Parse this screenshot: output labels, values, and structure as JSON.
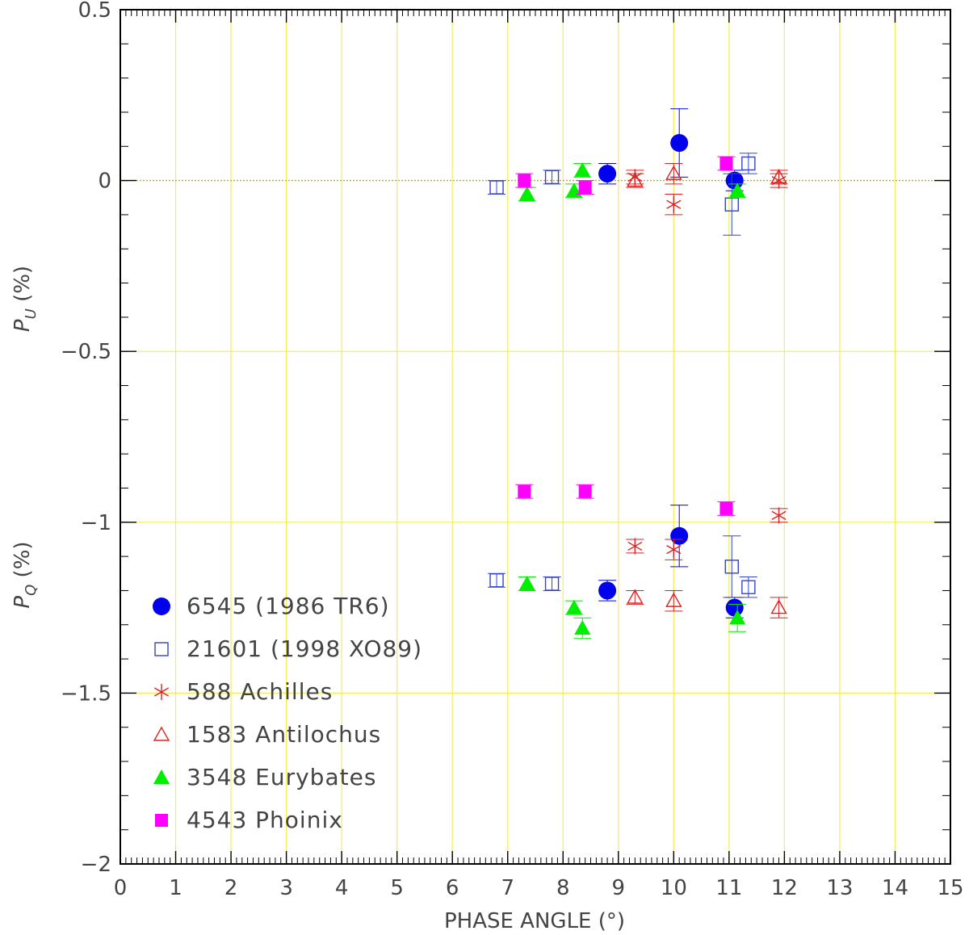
{
  "chart_data": {
    "type": "scatter",
    "xlabel": "PHASE ANGLE (°)",
    "ylabel_u": "P",
    "ylabel_u_sub": "U",
    "ylabel_q": "P",
    "ylabel_q_sub": "Q",
    "ylabel_unit": "(%)",
    "xlim": [
      0,
      15
    ],
    "ylim": [
      -2,
      0.5
    ],
    "xticks": [
      0,
      1,
      2,
      3,
      4,
      5,
      6,
      7,
      8,
      9,
      10,
      11,
      12,
      13,
      14,
      15
    ],
    "yticks": [
      0.5,
      0,
      -0.5,
      -1,
      -1.5,
      -2
    ],
    "ytick_labels": [
      "0.5",
      "0",
      "−0.5",
      "−1",
      "−1.5",
      "−2"
    ],
    "grid": true,
    "legend_position": "bottom-left",
    "series": [
      {
        "name": "6545 (1986 TR6)",
        "marker": "filled-circle",
        "color": "#0000ee",
        "pu": [
          {
            "x": 8.8,
            "y": 0.02,
            "err": 0.03
          },
          {
            "x": 10.1,
            "y": 0.11,
            "err": 0.1
          },
          {
            "x": 11.1,
            "y": 0.0,
            "err": 0.03
          }
        ],
        "pq": [
          {
            "x": 8.8,
            "y": -1.2,
            "err": 0.03
          },
          {
            "x": 10.1,
            "y": -1.04,
            "err": 0.09
          },
          {
            "x": 11.1,
            "y": -1.25,
            "err": 0.03
          }
        ]
      },
      {
        "name": "21601 (1998 XO89)",
        "marker": "open-square",
        "color": "#3344cc",
        "pu": [
          {
            "x": 6.8,
            "y": -0.02,
            "err": 0.02
          },
          {
            "x": 7.8,
            "y": 0.01,
            "err": 0.02
          },
          {
            "x": 11.05,
            "y": -0.07,
            "err": 0.09
          },
          {
            "x": 11.35,
            "y": 0.05,
            "err": 0.03
          }
        ],
        "pq": [
          {
            "x": 6.8,
            "y": -1.17,
            "err": 0.02
          },
          {
            "x": 7.8,
            "y": -1.18,
            "err": 0.02
          },
          {
            "x": 11.05,
            "y": -1.13,
            "err": 0.09
          },
          {
            "x": 11.35,
            "y": -1.19,
            "err": 0.03
          }
        ]
      },
      {
        "name": "588 Achilles",
        "marker": "asterisk",
        "color": "#dd2222",
        "pu": [
          {
            "x": 9.3,
            "y": 0.01,
            "err": 0.02
          },
          {
            "x": 10.0,
            "y": -0.07,
            "err": 0.03
          },
          {
            "x": 11.9,
            "y": 0.0,
            "err": 0.02
          }
        ],
        "pq": [
          {
            "x": 9.3,
            "y": -1.07,
            "err": 0.02
          },
          {
            "x": 10.0,
            "y": -1.08,
            "err": 0.03
          },
          {
            "x": 11.9,
            "y": -0.98,
            "err": 0.02
          }
        ]
      },
      {
        "name": "1583 Antilochus",
        "marker": "open-triangle",
        "color": "#dd2222",
        "pu": [
          {
            "x": 9.3,
            "y": 0.0,
            "err": 0.02
          },
          {
            "x": 10.0,
            "y": 0.02,
            "err": 0.03
          },
          {
            "x": 11.9,
            "y": 0.01,
            "err": 0.02
          }
        ],
        "pq": [
          {
            "x": 9.3,
            "y": -1.22,
            "err": 0.02
          },
          {
            "x": 10.0,
            "y": -1.23,
            "err": 0.03
          },
          {
            "x": 11.9,
            "y": -1.25,
            "err": 0.03
          }
        ]
      },
      {
        "name": "3548 Eurybates",
        "marker": "filled-triangle",
        "color": "#00ee00",
        "pu": [
          {
            "x": 7.35,
            "y": -0.04,
            "err": 0.02
          },
          {
            "x": 8.2,
            "y": -0.03,
            "err": 0.02
          },
          {
            "x": 8.35,
            "y": 0.03,
            "err": 0.02
          },
          {
            "x": 11.15,
            "y": -0.03,
            "err": 0.02
          }
        ],
        "pq": [
          {
            "x": 7.35,
            "y": -1.18,
            "err": 0.02
          },
          {
            "x": 8.2,
            "y": -1.25,
            "err": 0.02
          },
          {
            "x": 8.35,
            "y": -1.31,
            "err": 0.03
          },
          {
            "x": 11.15,
            "y": -1.28,
            "err": 0.04
          }
        ]
      },
      {
        "name": "4543 Phoinix",
        "marker": "filled-square",
        "color": "#ff00ff",
        "pu": [
          {
            "x": 7.3,
            "y": 0.0,
            "err": 0.02
          },
          {
            "x": 8.4,
            "y": -0.02,
            "err": 0.02
          },
          {
            "x": 10.95,
            "y": 0.05,
            "err": 0.02
          }
        ],
        "pq": [
          {
            "x": 7.3,
            "y": -0.91,
            "err": 0.02
          },
          {
            "x": 8.4,
            "y": -0.91,
            "err": 0.02
          },
          {
            "x": 10.95,
            "y": -0.96,
            "err": 0.02
          }
        ]
      }
    ]
  }
}
